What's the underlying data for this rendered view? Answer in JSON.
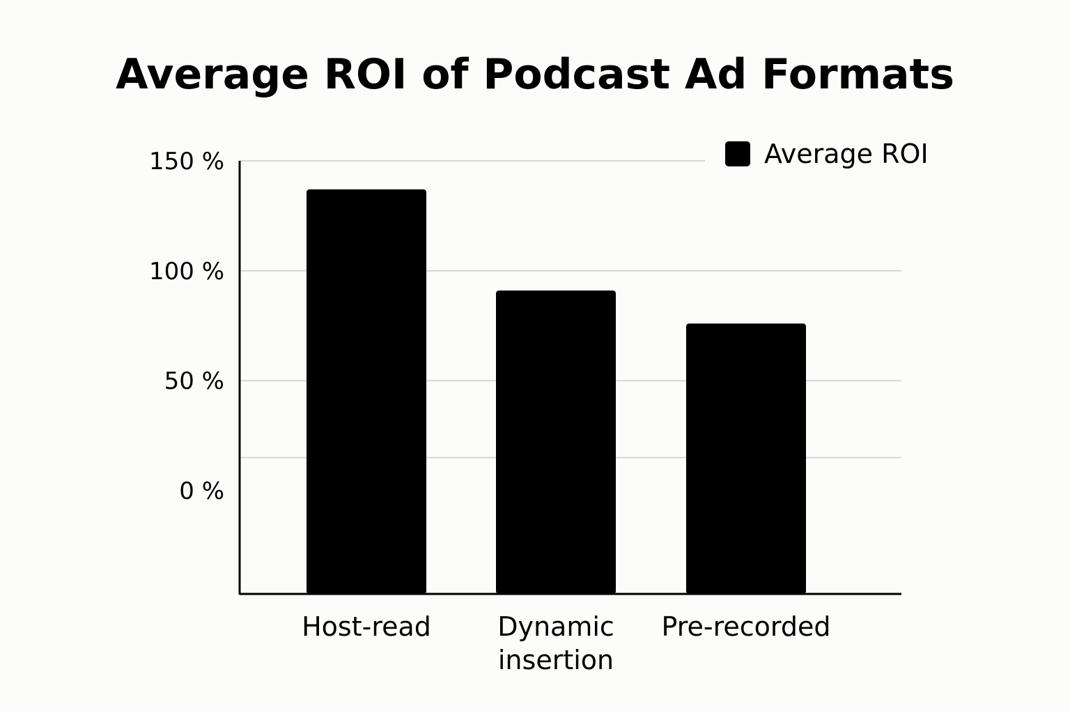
{
  "chart_data": {
    "type": "bar",
    "title": "Average ROI of Podcast Ad Formats",
    "categories": [
      [
        "Host-read"
      ],
      [
        "Dynamic",
        "insertion"
      ],
      [
        "Pre-recorded"
      ]
    ],
    "series": [
      {
        "name": "Average ROI",
        "values": [
          137,
          91,
          76
        ],
        "color": "#000000"
      }
    ],
    "yaxis": {
      "ticks": [
        0,
        50,
        100,
        150
      ],
      "tick_labels": [
        "0 %",
        "50 %",
        "100 %",
        "150 %"
      ],
      "gridlines_at": [
        50,
        100,
        150
      ],
      "extra_gridline_at": 15,
      "ylim": [
        -47,
        150
      ]
    },
    "xlabel": "",
    "ylabel": "",
    "grid": true,
    "legend": {
      "position": "top-right",
      "entries": [
        "Average ROI"
      ]
    },
    "colors": {
      "background": "#fcfcfa",
      "bar": "#000000",
      "grid": "#d6d6d6",
      "axis": "#000000"
    }
  }
}
